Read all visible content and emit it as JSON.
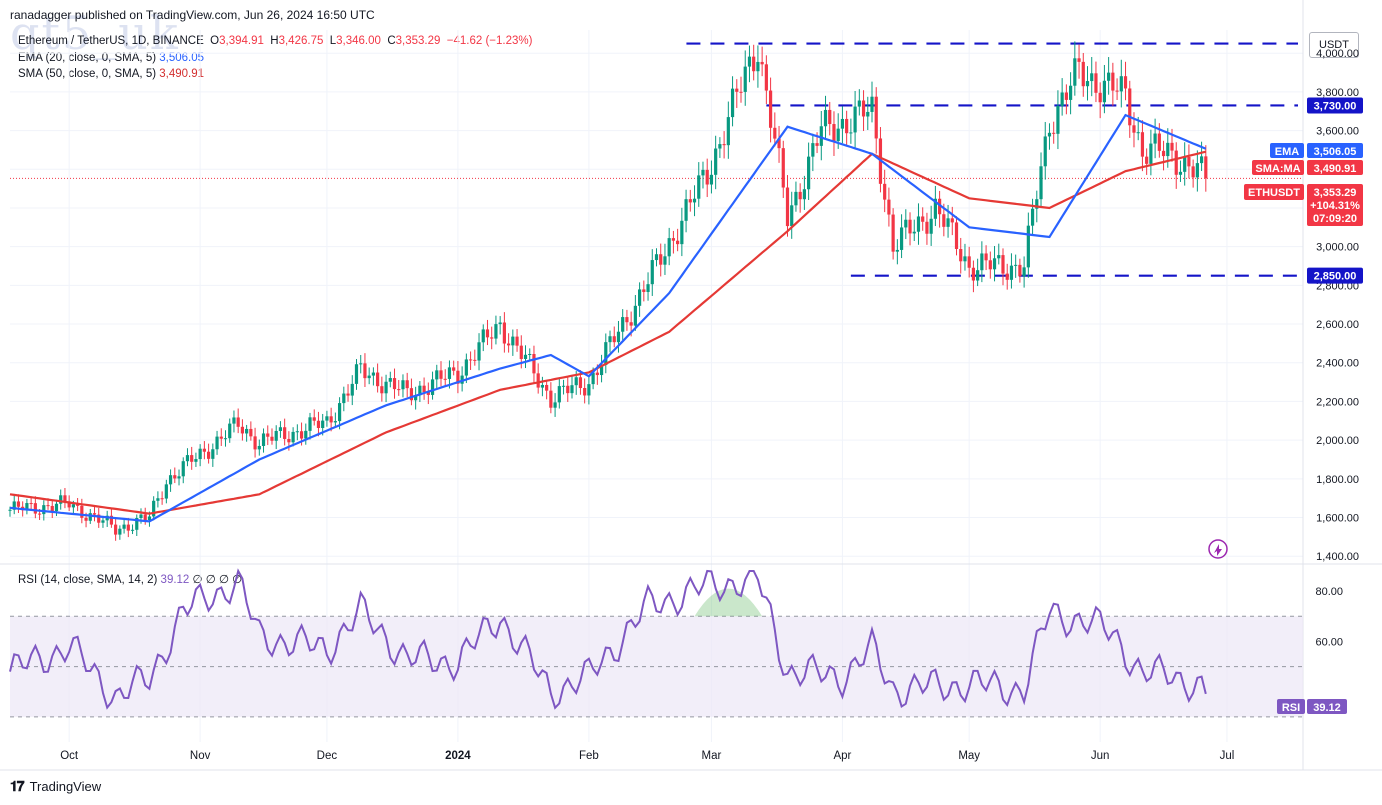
{
  "header": {
    "published_by": "ranadagger published on TradingView.com, Jun 26, 2024 16:50 UTC",
    "watermark": "qt5_uk",
    "symbol_line": "Ethereum / TetherUS, 1D, BINANCE",
    "ohlc": {
      "o_label": "O",
      "o": "3,394.91",
      "h_label": "H",
      "h": "3,426.75",
      "l_label": "L",
      "l": "3,346.00",
      "c_label": "C",
      "c": "3,353.29",
      "change": "−41.62 (−1.23%)"
    },
    "ema_label": "EMA (20, close, 0, SMA, 5)",
    "ema_value": "3,506.05",
    "sma_label": "SMA (50, close, 0, SMA, 5)",
    "sma_value": "3,490.91",
    "rsi_label": "RSI (14, close, SMA, 14, 2)",
    "rsi_value": "39.12",
    "rsi_extra": "∅ ∅ ∅ ∅",
    "currency": "USDT"
  },
  "colors": {
    "up": "#089981",
    "down": "#f23645",
    "ema": "#2962ff",
    "sma": "#e53935",
    "rsi": "#7e57c2",
    "level": "#1414c8",
    "rsi_band": "#ede7f6",
    "grid": "#f0f3fa"
  },
  "tags": {
    "level_high": "3,730.00",
    "level_low": "2,850.00",
    "ema_tag": "EMA",
    "ema_val": "3,506.05",
    "sma_tag": "SMA:MA",
    "sma_val": "3,490.91",
    "price_tag": "ETHUSDT",
    "price_val": "3,353.29",
    "price_pct": "+104.31%",
    "countdown": "07:09:20",
    "rsi_tag": "RSI",
    "rsi_val": "39.12"
  },
  "footer": {
    "brand": "TradingView"
  },
  "chart_data": [
    {
      "type": "candlestick",
      "title": "Ethereum / TetherUS, 1D, BINANCE",
      "y_ticks": [
        4000,
        3800,
        3600,
        3400,
        3200,
        3000,
        2800,
        2600,
        2400,
        2200,
        2000,
        1800,
        1600,
        1400
      ],
      "y_tick_labels": [
        "4,000.00",
        "3,800.00",
        "3,600.00",
        "3,400.00",
        "3,200.00",
        "3,000.00",
        "2,800.00",
        "2,600.00",
        "2,400.00",
        "2,200.00",
        "2,000.00",
        "1,800.00",
        "1,600.00",
        "1,400.00"
      ],
      "ylim": [
        1370,
        4120
      ],
      "x_labels": [
        "Oct",
        "Nov",
        "Dec",
        "2024",
        "Feb",
        "Mar",
        "Apr",
        "May",
        "Jun",
        "Jul"
      ],
      "horizontal_levels": [
        4050,
        3730,
        2850
      ],
      "last_close": 3353.29,
      "series": [
        {
          "name": "ETHUSDT",
          "points": [
            {
              "x": "Sep 17",
              "close": 1640
            },
            {
              "x": "Oct 1",
              "close": 1670
            },
            {
              "x": "Oct 12",
              "close": 1540
            },
            {
              "x": "Oct 20",
              "close": 1600
            },
            {
              "x": "Oct 24",
              "close": 1790
            },
            {
              "x": "Nov 10",
              "close": 2080
            },
            {
              "x": "Nov 15",
              "close": 1990
            },
            {
              "x": "Dec 1",
              "close": 2090
            },
            {
              "x": "Dec 9",
              "close": 2360
            },
            {
              "x": "Dec 20",
              "close": 2240
            },
            {
              "x": "Jan 1",
              "close": 2350
            },
            {
              "x": "Jan 11",
              "close": 2600
            },
            {
              "x": "Jan 23",
              "close": 2220
            },
            {
              "x": "Feb 1",
              "close": 2300
            },
            {
              "x": "Feb 15",
              "close": 2820
            },
            {
              "x": "Feb 29",
              "close": 3380
            },
            {
              "x": "Mar 12",
              "close": 4050
            },
            {
              "x": "Mar 19",
              "close": 3150
            },
            {
              "x": "Mar 27",
              "close": 3600
            },
            {
              "x": "Apr 8",
              "close": 3700
            },
            {
              "x": "Apr 13",
              "close": 3000
            },
            {
              "x": "Apr 23",
              "close": 3200
            },
            {
              "x": "May 1",
              "close": 2900
            },
            {
              "x": "May 14",
              "close": 2900
            },
            {
              "x": "May 20",
              "close": 3650
            },
            {
              "x": "May 27",
              "close": 3900
            },
            {
              "x": "Jun 7",
              "close": 3780
            },
            {
              "x": "Jun 11",
              "close": 3500
            },
            {
              "x": "Jun 18",
              "close": 3480
            },
            {
              "x": "Jun 26",
              "close": 3353.29
            }
          ]
        },
        {
          "name": "EMA (20)",
          "points": [
            {
              "x": "Sep 17",
              "close": 1650
            },
            {
              "x": "Oct 20",
              "close": 1580
            },
            {
              "x": "Nov 15",
              "close": 1900
            },
            {
              "x": "Dec 15",
              "close": 2180
            },
            {
              "x": "Jan 11",
              "close": 2370
            },
            {
              "x": "Jan 23",
              "close": 2440
            },
            {
              "x": "Feb 1",
              "close": 2330
            },
            {
              "x": "Feb 20",
              "close": 2760
            },
            {
              "x": "Mar 19",
              "close": 3620
            },
            {
              "x": "Apr 8",
              "close": 3480
            },
            {
              "x": "May 1",
              "close": 3100
            },
            {
              "x": "May 20",
              "close": 3050
            },
            {
              "x": "Jun 7",
              "close": 3680
            },
            {
              "x": "Jun 26",
              "close": 3506.05
            }
          ]
        },
        {
          "name": "SMA (50)",
          "points": [
            {
              "x": "Sep 17",
              "close": 1720
            },
            {
              "x": "Oct 20",
              "close": 1620
            },
            {
              "x": "Nov 15",
              "close": 1720
            },
            {
              "x": "Dec 15",
              "close": 2040
            },
            {
              "x": "Jan 11",
              "close": 2260
            },
            {
              "x": "Feb 1",
              "close": 2350
            },
            {
              "x": "Feb 20",
              "close": 2560
            },
            {
              "x": "Mar 19",
              "close": 3080
            },
            {
              "x": "Apr 8",
              "close": 3480
            },
            {
              "x": "May 1",
              "close": 3250
            },
            {
              "x": "May 20",
              "close": 3200
            },
            {
              "x": "Jun 7",
              "close": 3390
            },
            {
              "x": "Jun 26",
              "close": 3490.91
            }
          ]
        }
      ]
    },
    {
      "type": "line",
      "title": "RSI (14, close, SMA, 14, 2)",
      "y_ticks": [
        80,
        60
      ],
      "y_tick_labels": [
        "80.00",
        "60.00"
      ],
      "band": [
        30,
        70
      ],
      "mid": 50,
      "ylim": [
        20,
        90
      ],
      "series": [
        {
          "name": "RSI",
          "points": [
            {
              "x": "Sep 17",
              "y": 48
            },
            {
              "x": "Oct 1",
              "y": 58
            },
            {
              "x": "Oct 12",
              "y": 38
            },
            {
              "x": "Oct 20",
              "y": 45
            },
            {
              "x": "Oct 28",
              "y": 72
            },
            {
              "x": "Nov 10",
              "y": 84
            },
            {
              "x": "Nov 15",
              "y": 62
            },
            {
              "x": "Dec 1",
              "y": 57
            },
            {
              "x": "Dec 9",
              "y": 72
            },
            {
              "x": "Dec 20",
              "y": 53
            },
            {
              "x": "Jan 1",
              "y": 52
            },
            {
              "x": "Jan 11",
              "y": 70
            },
            {
              "x": "Jan 23",
              "y": 40
            },
            {
              "x": "Feb 1",
              "y": 46
            },
            {
              "x": "Feb 15",
              "y": 74
            },
            {
              "x": "Feb 29",
              "y": 82
            },
            {
              "x": "Mar 12",
              "y": 85
            },
            {
              "x": "Mar 19",
              "y": 48
            },
            {
              "x": "Apr 1",
              "y": 46
            },
            {
              "x": "Apr 8",
              "y": 57
            },
            {
              "x": "Apr 13",
              "y": 41
            },
            {
              "x": "May 1",
              "y": 43
            },
            {
              "x": "May 14",
              "y": 41
            },
            {
              "x": "May 20",
              "y": 72
            },
            {
              "x": "Jun 4",
              "y": 64
            },
            {
              "x": "Jun 11",
              "y": 46
            },
            {
              "x": "Jun 18",
              "y": 48
            },
            {
              "x": "Jun 26",
              "y": 39.12
            }
          ]
        }
      ]
    }
  ]
}
